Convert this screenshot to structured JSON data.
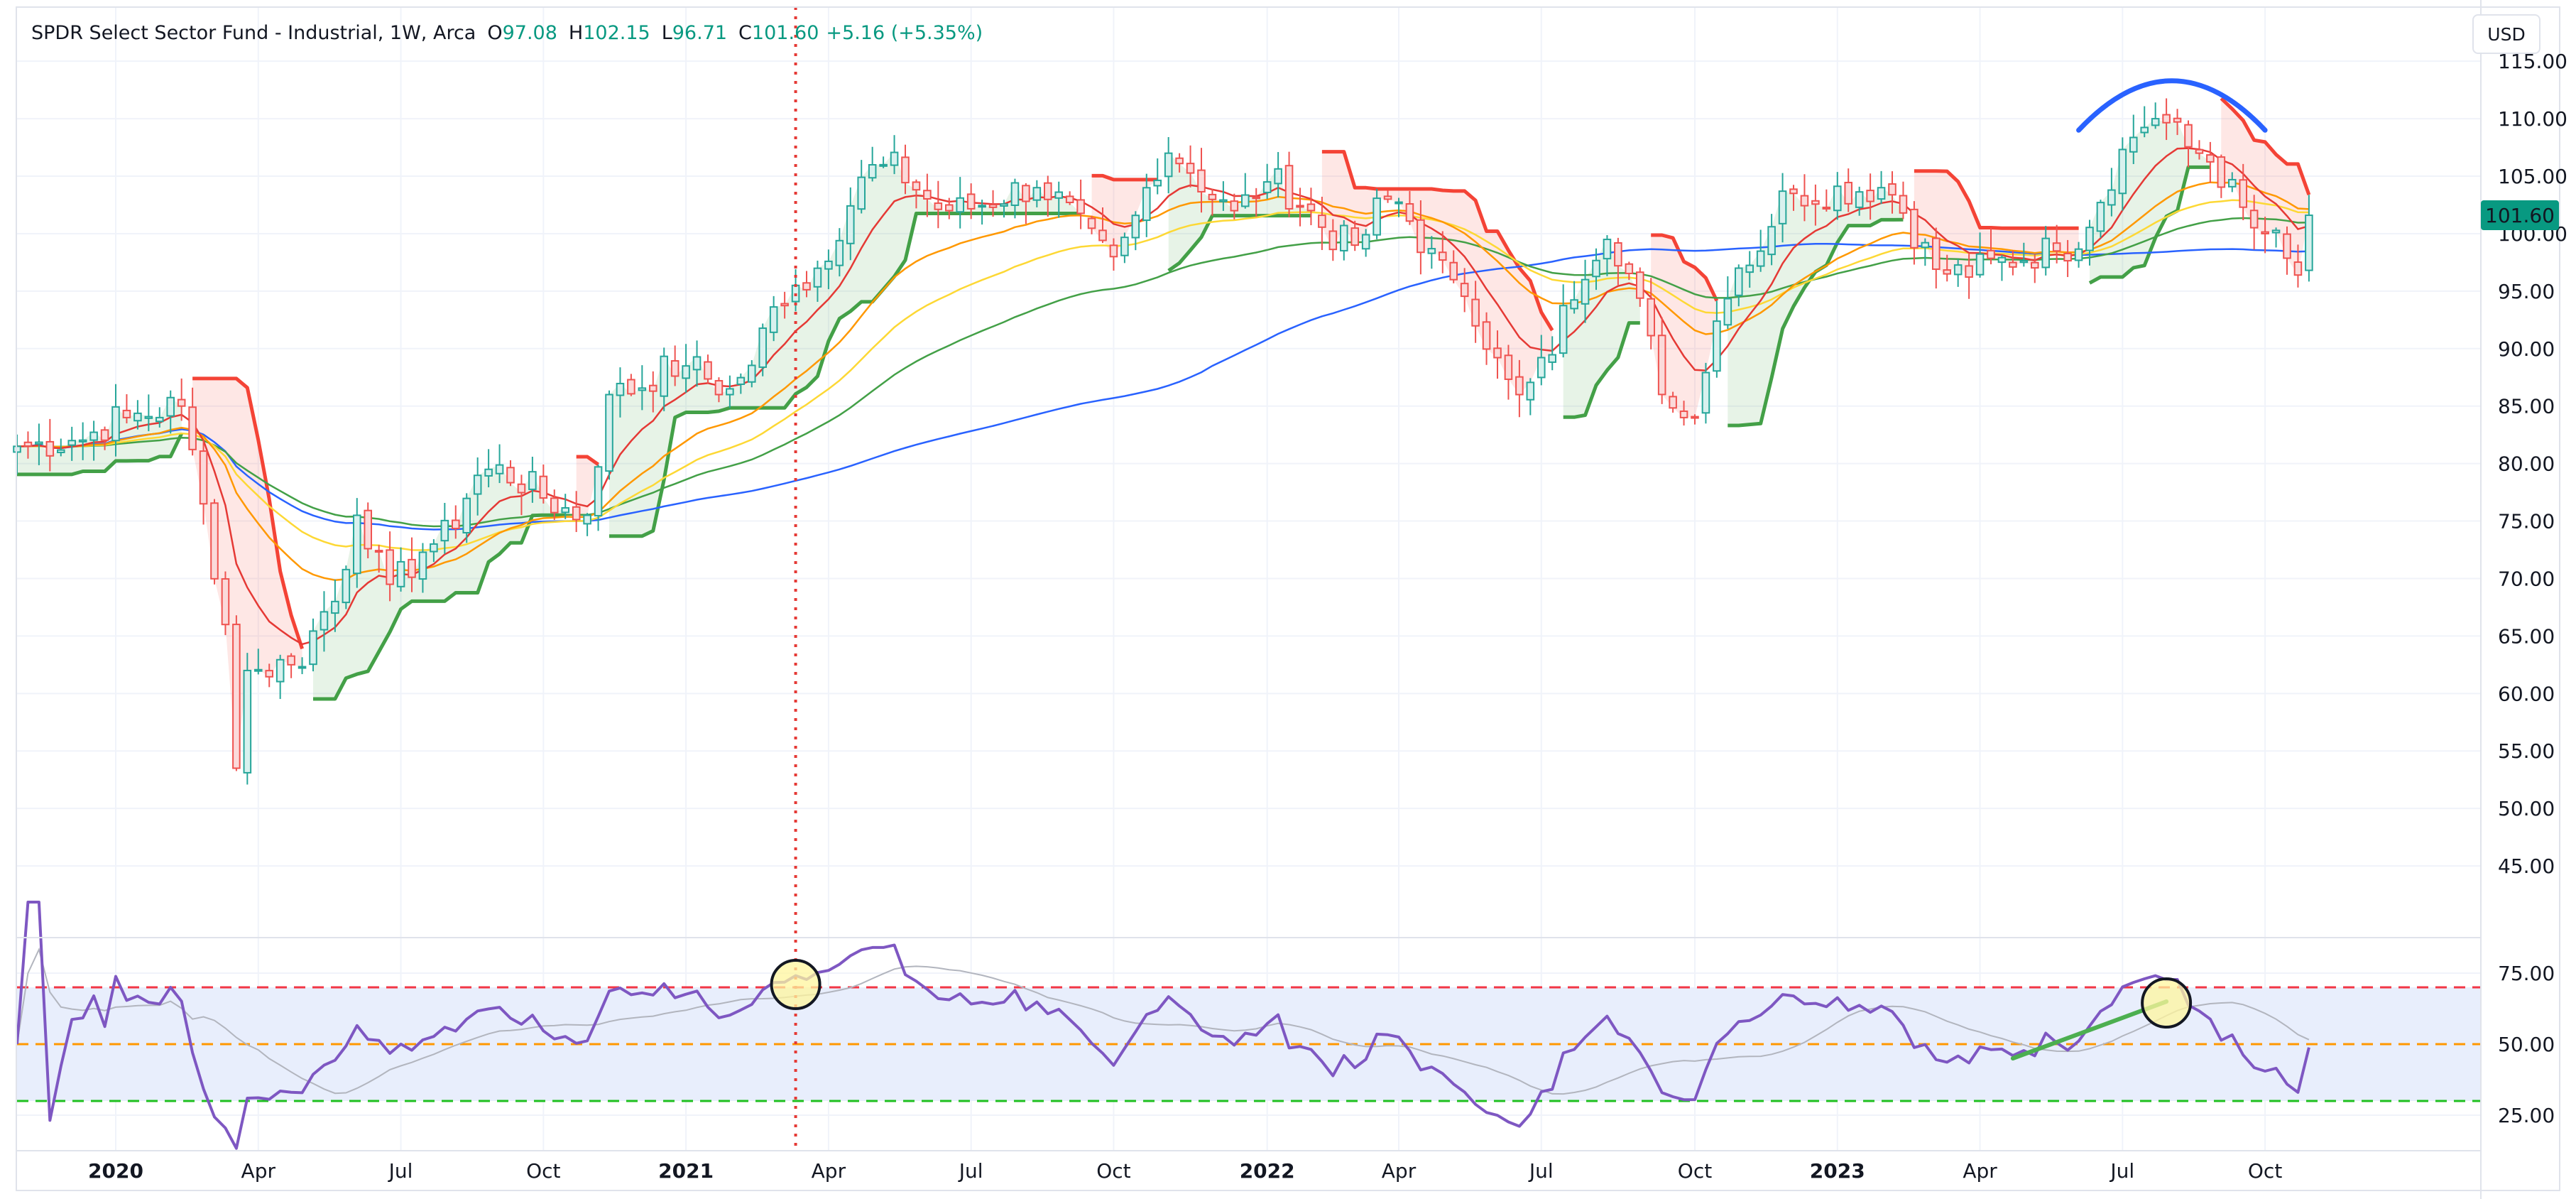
{
  "header": {
    "symbol_title": "SPDR Select Sector Fund - Industrial, 1W, Arca",
    "ohlc": [
      {
        "key": "O",
        "value": "97.08"
      },
      {
        "key": "H",
        "value": "102.15"
      },
      {
        "key": "L",
        "value": "96.71"
      },
      {
        "key": "C",
        "value": "101.60"
      }
    ],
    "change": "+5.16 (+5.35%)",
    "currency": "USD"
  },
  "colors": {
    "up": "#26a69a",
    "down": "#ef5350",
    "ema_fast": "#e53935",
    "ema_mid": "#ff9800",
    "ema_slow": "#fdd835",
    "ema_long": "#43a047",
    "ma_200": "#2962ff",
    "trail_up": "#43a047",
    "trail_down": "#f44336",
    "rsi": "#7e57c2",
    "rsi_band": "#e8eefc",
    "overbought": "#f23645",
    "midline": "#ff9800",
    "oversold": "#1fc01f",
    "price_tag": "#089981",
    "drawing_arc": "#2962ff",
    "drawing_trend": "#4caf50",
    "highlight": "#fff59d"
  },
  "chart_data": {
    "type": "candlestick",
    "title": "SPDR Select Sector Fund - Industrial, 1W, Arca",
    "price_axis": {
      "ylim": [
        40,
        116
      ],
      "ticks": [
        "115.00",
        "110.00",
        "105.00",
        "100.00",
        "95.00",
        "90.00",
        "85.00",
        "80.00",
        "75.00",
        "70.00",
        "65.00",
        "60.00",
        "55.00",
        "50.00",
        "45.00"
      ],
      "last_price": "101.60"
    },
    "time_axis": {
      "start": "2019-11-01",
      "end": "2023-12-22",
      "labels": [
        {
          "text": "2020",
          "date": "2020-01-03",
          "bold": true
        },
        {
          "text": "Apr",
          "date": "2020-04-03",
          "bold": false
        },
        {
          "text": "Jul",
          "date": "2020-07-03",
          "bold": false
        },
        {
          "text": "Oct",
          "date": "2020-10-02",
          "bold": false
        },
        {
          "text": "2021",
          "date": "2021-01-01",
          "bold": true
        },
        {
          "text": "Apr",
          "date": "2021-04-02",
          "bold": false
        },
        {
          "text": "Jul",
          "date": "2021-07-02",
          "bold": false
        },
        {
          "text": "Oct",
          "date": "2021-10-01",
          "bold": false
        },
        {
          "text": "2022",
          "date": "2022-01-07",
          "bold": true
        },
        {
          "text": "Apr",
          "date": "2022-04-01",
          "bold": false
        },
        {
          "text": "Jul",
          "date": "2022-07-01",
          "bold": false
        },
        {
          "text": "Oct",
          "date": "2022-10-07",
          "bold": false
        },
        {
          "text": "2023",
          "date": "2023-01-06",
          "bold": true
        },
        {
          "text": "Apr",
          "date": "2023-04-07",
          "bold": false
        },
        {
          "text": "Jul",
          "date": "2023-07-07",
          "bold": false
        },
        {
          "text": "Oct",
          "date": "2023-10-06",
          "bold": false
        }
      ]
    },
    "close_anchors": [
      [
        "2019-11-01",
        81.5
      ],
      [
        "2019-12-06",
        82.0
      ],
      [
        "2020-01-10",
        84.0
      ],
      [
        "2020-02-14",
        85.0
      ],
      [
        "2020-02-28",
        76.5
      ],
      [
        "2020-03-13",
        66.0
      ],
      [
        "2020-03-20",
        53.5
      ],
      [
        "2020-03-27",
        62.0
      ],
      [
        "2020-04-24",
        62.5
      ],
      [
        "2020-05-22",
        68.0
      ],
      [
        "2020-06-05",
        75.5
      ],
      [
        "2020-06-26",
        69.5
      ],
      [
        "2020-07-24",
        73.0
      ],
      [
        "2020-08-28",
        79.5
      ],
      [
        "2020-10-30",
        75.5
      ],
      [
        "2020-11-13",
        86.0
      ],
      [
        "2020-12-31",
        88.5
      ],
      [
        "2021-01-29",
        86.5
      ],
      [
        "2021-03-12",
        95.5
      ],
      [
        "2021-05-07",
        106.0
      ],
      [
        "2021-06-18",
        102.0
      ],
      [
        "2021-08-13",
        104.0
      ],
      [
        "2021-10-01",
        98.0
      ],
      [
        "2021-11-05",
        107.0
      ],
      [
        "2021-12-17",
        102.0
      ],
      [
        "2022-01-07",
        104.5
      ],
      [
        "2022-03-04",
        99.0
      ],
      [
        "2022-03-25",
        103.0
      ],
      [
        "2022-05-06",
        96.0
      ],
      [
        "2022-06-17",
        86.0
      ],
      [
        "2022-08-12",
        99.5
      ],
      [
        "2022-09-30",
        84.0
      ],
      [
        "2022-11-04",
        97.0
      ],
      [
        "2022-12-09",
        103.5
      ],
      [
        "2023-02-03",
        104.0
      ],
      [
        "2023-03-17",
        96.5
      ],
      [
        "2023-05-26",
        98.5
      ],
      [
        "2023-07-28",
        110.0
      ],
      [
        "2023-08-25",
        107.0
      ],
      [
        "2023-10-06",
        100.0
      ],
      [
        "2023-10-27",
        96.4
      ],
      [
        "2023-11-03",
        101.6
      ]
    ],
    "indicators": [
      {
        "type": "ema",
        "period": 8
      },
      {
        "type": "ema",
        "period": 21
      },
      {
        "type": "ema",
        "period": 34
      },
      {
        "type": "ema",
        "period": 55
      },
      {
        "type": "sma",
        "period": 89
      },
      {
        "type": "trailing_stop",
        "lookback": 6
      }
    ],
    "rsi": {
      "period": 14,
      "ylim": [
        15,
        85
      ],
      "ticks": [
        "75.00",
        "50.00",
        "25.00"
      ],
      "overbought": 70,
      "midline": 50,
      "oversold": 30
    },
    "drawings": {
      "vertical_line_date": "2021-03-12",
      "arc": {
        "from_date": "2023-06-09",
        "to_date": "2023-10-06",
        "base_price": 109.0,
        "peak_price": 113.3
      },
      "rsi_trendline": [
        [
          "2023-04-28",
          45.0
        ],
        [
          "2023-08-04",
          65.0
        ]
      ],
      "rsi_circles": [
        [
          "2021-03-12",
          71.0
        ],
        [
          "2023-08-04",
          64.5
        ]
      ]
    }
  }
}
